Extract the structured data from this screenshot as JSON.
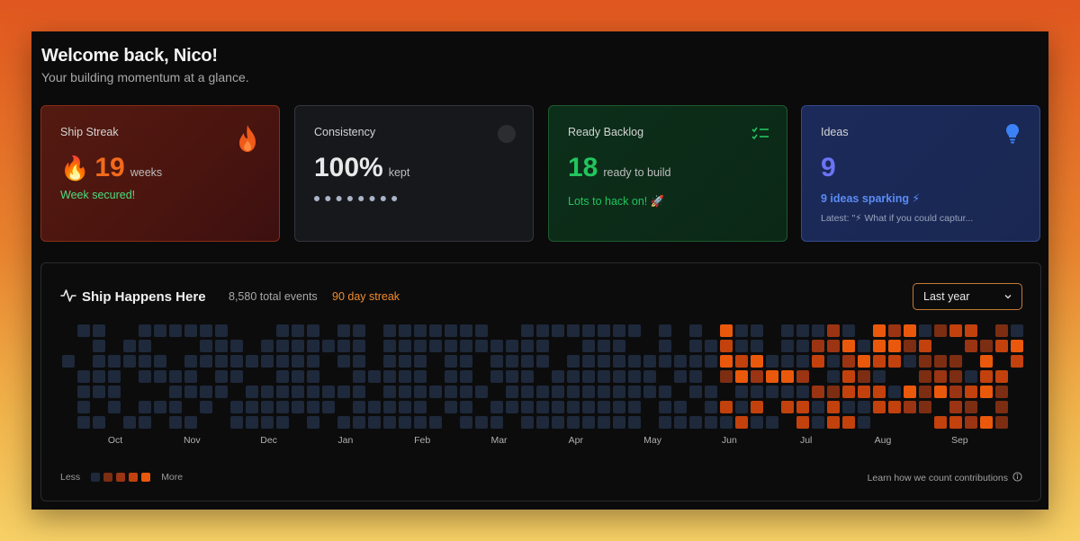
{
  "header": {
    "title": "Welcome back, Nico!",
    "subtitle": "Your building momentum at a glance."
  },
  "cards": {
    "streak": {
      "title": "Ship Streak",
      "emoji": "🔥",
      "value": "19",
      "unit": "weeks",
      "status": "Week secured!",
      "icon": "flame-icon",
      "accent": "#f26a1b"
    },
    "consistency": {
      "title": "Consistency",
      "value": "100%",
      "unit": "kept",
      "dots": 8,
      "icon": "circle-icon"
    },
    "backlog": {
      "title": "Ready Backlog",
      "value": "18",
      "unit": "ready to build",
      "status": "Lots to hack on! 🚀",
      "icon": "checklist-icon",
      "accent": "#22c55e"
    },
    "ideas": {
      "title": "Ideas",
      "value": "9",
      "status": "9 ideas sparking ⚡",
      "latest": "Latest: \"⚡ What if you could captur...",
      "icon": "lightbulb-icon",
      "accent": "#5b6cf0"
    }
  },
  "activity": {
    "title": "Ship Happens Here",
    "icon": "activity-icon",
    "total_events": "8,580 total events",
    "streak": "90 day streak",
    "range_select": "Last year",
    "months": [
      "Oct",
      "Nov",
      "Dec",
      "Jan",
      "Feb",
      "Mar",
      "Apr",
      "May",
      "Jun",
      "Jul",
      "Aug",
      "Sep"
    ],
    "legend_less": "Less",
    "legend_more": "More",
    "learn_link": "Learn how we count contributions",
    "colors": [
      "#1e293b",
      "#7c2d12",
      "#9a3412",
      "#c2410c",
      "#ea580c"
    ]
  }
}
